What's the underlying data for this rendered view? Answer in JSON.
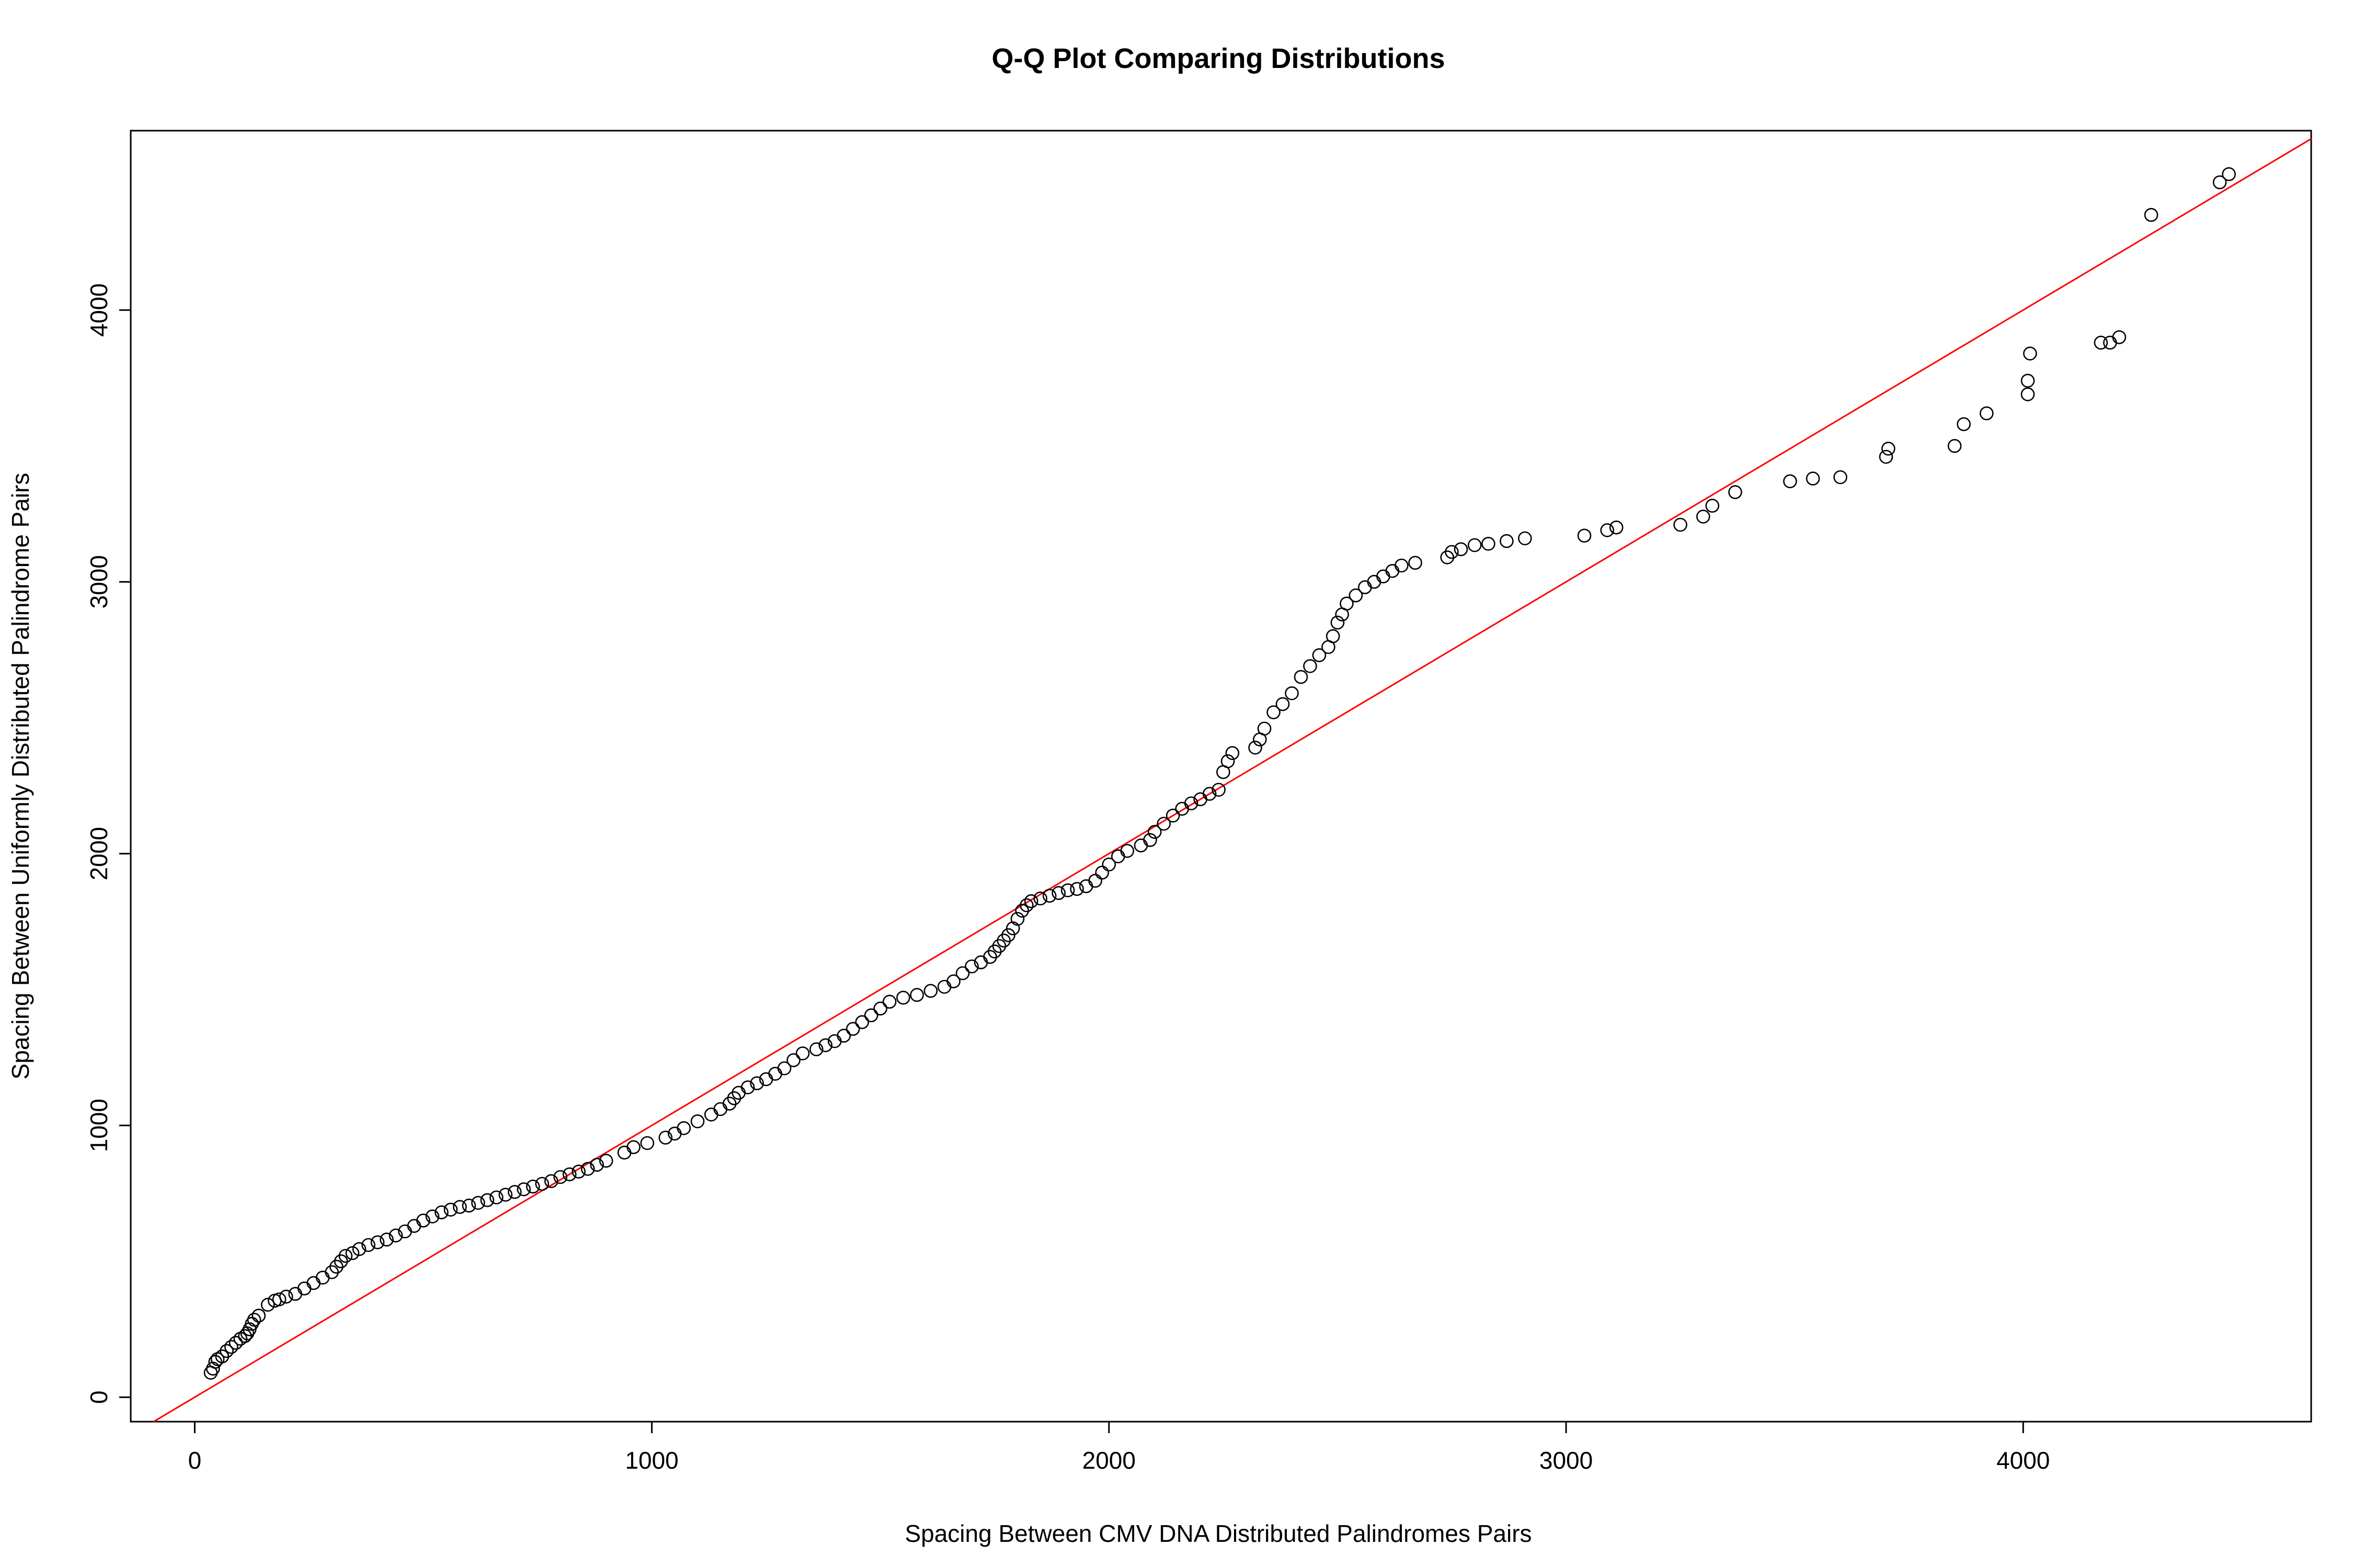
{
  "chart_data": {
    "type": "scatter",
    "title": "Q-Q Plot Comparing Distributions",
    "xlabel": "Spacing Between CMV DNA Distributed Palindromes Pairs",
    "ylabel": "Spacing Between Uniformly Distributed Palindrome Pairs",
    "xlim": [
      -140,
      4630
    ],
    "ylim": [
      -90,
      4660
    ],
    "xticks": [
      0,
      1000,
      2000,
      3000,
      4000
    ],
    "yticks": [
      0,
      1000,
      2000,
      3000,
      4000
    ],
    "grid": false,
    "legend": "none",
    "point_color": "#000000",
    "reference_line": {
      "intercept": 0,
      "slope": 1,
      "color": "#ff0000"
    },
    "series": [
      {
        "points": [
          [
            35,
            90
          ],
          [
            40,
            105
          ],
          [
            45,
            130
          ],
          [
            50,
            140
          ],
          [
            60,
            150
          ],
          [
            70,
            170
          ],
          [
            80,
            185
          ],
          [
            90,
            200
          ],
          [
            100,
            215
          ],
          [
            110,
            225
          ],
          [
            115,
            235
          ],
          [
            120,
            250
          ],
          [
            125,
            270
          ],
          [
            130,
            285
          ],
          [
            140,
            300
          ],
          [
            160,
            340
          ],
          [
            175,
            355
          ],
          [
            185,
            360
          ],
          [
            200,
            370
          ],
          [
            220,
            380
          ],
          [
            240,
            400
          ],
          [
            260,
            420
          ],
          [
            280,
            440
          ],
          [
            300,
            460
          ],
          [
            310,
            480
          ],
          [
            320,
            500
          ],
          [
            330,
            520
          ],
          [
            345,
            530
          ],
          [
            360,
            545
          ],
          [
            380,
            560
          ],
          [
            400,
            570
          ],
          [
            420,
            580
          ],
          [
            440,
            595
          ],
          [
            460,
            610
          ],
          [
            480,
            630
          ],
          [
            500,
            650
          ],
          [
            520,
            665
          ],
          [
            540,
            680
          ],
          [
            560,
            690
          ],
          [
            580,
            700
          ],
          [
            600,
            705
          ],
          [
            620,
            715
          ],
          [
            640,
            725
          ],
          [
            660,
            735
          ],
          [
            680,
            745
          ],
          [
            700,
            755
          ],
          [
            720,
            765
          ],
          [
            740,
            775
          ],
          [
            760,
            785
          ],
          [
            780,
            795
          ],
          [
            800,
            810
          ],
          [
            820,
            820
          ],
          [
            840,
            830
          ],
          [
            860,
            840
          ],
          [
            880,
            855
          ],
          [
            900,
            870
          ],
          [
            940,
            900
          ],
          [
            960,
            920
          ],
          [
            990,
            935
          ],
          [
            1030,
            955
          ],
          [
            1050,
            970
          ],
          [
            1070,
            990
          ],
          [
            1100,
            1015
          ],
          [
            1130,
            1040
          ],
          [
            1150,
            1060
          ],
          [
            1170,
            1080
          ],
          [
            1180,
            1100
          ],
          [
            1190,
            1120
          ],
          [
            1210,
            1140
          ],
          [
            1230,
            1155
          ],
          [
            1250,
            1170
          ],
          [
            1270,
            1190
          ],
          [
            1290,
            1210
          ],
          [
            1310,
            1240
          ],
          [
            1330,
            1265
          ],
          [
            1360,
            1280
          ],
          [
            1380,
            1295
          ],
          [
            1400,
            1310
          ],
          [
            1420,
            1330
          ],
          [
            1440,
            1355
          ],
          [
            1460,
            1380
          ],
          [
            1480,
            1405
          ],
          [
            1500,
            1430
          ],
          [
            1520,
            1455
          ],
          [
            1550,
            1470
          ],
          [
            1580,
            1480
          ],
          [
            1610,
            1495
          ],
          [
            1640,
            1510
          ],
          [
            1660,
            1530
          ],
          [
            1680,
            1560
          ],
          [
            1700,
            1585
          ],
          [
            1720,
            1600
          ],
          [
            1740,
            1620
          ],
          [
            1750,
            1640
          ],
          [
            1760,
            1660
          ],
          [
            1770,
            1680
          ],
          [
            1780,
            1700
          ],
          [
            1790,
            1725
          ],
          [
            1800,
            1760
          ],
          [
            1810,
            1790
          ],
          [
            1820,
            1810
          ],
          [
            1830,
            1825
          ],
          [
            1850,
            1835
          ],
          [
            1870,
            1845
          ],
          [
            1890,
            1855
          ],
          [
            1910,
            1865
          ],
          [
            1930,
            1870
          ],
          [
            1950,
            1880
          ],
          [
            1970,
            1900
          ],
          [
            1985,
            1930
          ],
          [
            2000,
            1960
          ],
          [
            2020,
            1990
          ],
          [
            2040,
            2010
          ],
          [
            2070,
            2030
          ],
          [
            2090,
            2050
          ],
          [
            2100,
            2080
          ],
          [
            2120,
            2110
          ],
          [
            2140,
            2140
          ],
          [
            2160,
            2165
          ],
          [
            2180,
            2185
          ],
          [
            2200,
            2200
          ],
          [
            2220,
            2220
          ],
          [
            2240,
            2235
          ],
          [
            2250,
            2300
          ],
          [
            2260,
            2340
          ],
          [
            2270,
            2370
          ],
          [
            2320,
            2390
          ],
          [
            2330,
            2420
          ],
          [
            2340,
            2460
          ],
          [
            2360,
            2520
          ],
          [
            2380,
            2550
          ],
          [
            2400,
            2590
          ],
          [
            2420,
            2650
          ],
          [
            2440,
            2690
          ],
          [
            2460,
            2730
          ],
          [
            2480,
            2760
          ],
          [
            2490,
            2800
          ],
          [
            2500,
            2850
          ],
          [
            2510,
            2880
          ],
          [
            2520,
            2920
          ],
          [
            2540,
            2950
          ],
          [
            2560,
            2980
          ],
          [
            2580,
            3000
          ],
          [
            2600,
            3020
          ],
          [
            2620,
            3040
          ],
          [
            2640,
            3060
          ],
          [
            2670,
            3070
          ],
          [
            2740,
            3090
          ],
          [
            2750,
            3110
          ],
          [
            2770,
            3120
          ],
          [
            2800,
            3135
          ],
          [
            2830,
            3140
          ],
          [
            2870,
            3150
          ],
          [
            2910,
            3160
          ],
          [
            3040,
            3170
          ],
          [
            3090,
            3190
          ],
          [
            3110,
            3200
          ],
          [
            3250,
            3210
          ],
          [
            3300,
            3240
          ],
          [
            3320,
            3280
          ],
          [
            3370,
            3330
          ],
          [
            3490,
            3370
          ],
          [
            3540,
            3380
          ],
          [
            3600,
            3385
          ],
          [
            3700,
            3460
          ],
          [
            3705,
            3490
          ],
          [
            3850,
            3500
          ],
          [
            3870,
            3580
          ],
          [
            3920,
            3620
          ],
          [
            4010,
            3690
          ],
          [
            4010,
            3740
          ],
          [
            4015,
            3840
          ],
          [
            4170,
            3880
          ],
          [
            4190,
            3880
          ],
          [
            4210,
            3900
          ],
          [
            4280,
            4350
          ],
          [
            4430,
            4470
          ],
          [
            4450,
            4500
          ]
        ]
      }
    ]
  }
}
